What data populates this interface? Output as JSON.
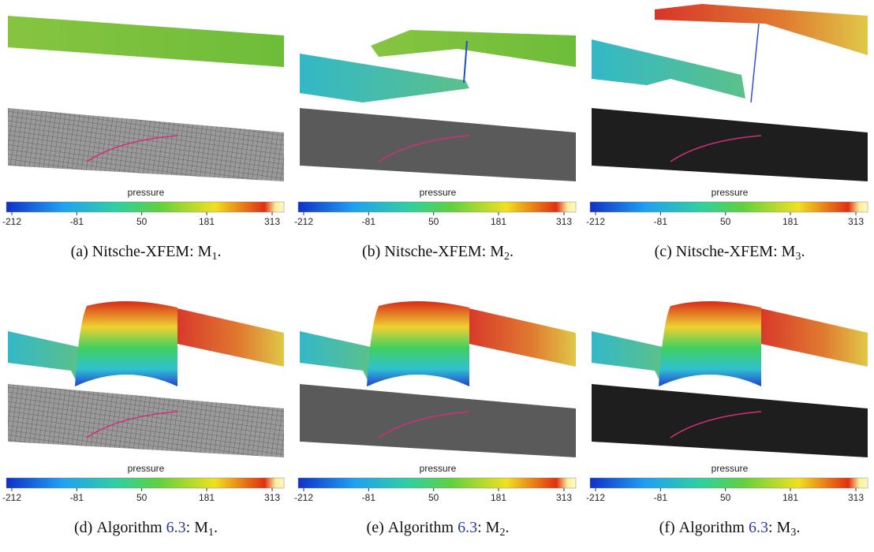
{
  "colorbar": {
    "title": "pressure",
    "ticks": [
      -212,
      -81,
      50,
      181,
      313
    ]
  },
  "panels": [
    {
      "caption": {
        "label": "(a)",
        "text": "Nitsche-XFEM: M",
        "sub": "1",
        "end": "."
      }
    },
    {
      "caption": {
        "label": "(b)",
        "text": "Nitsche-XFEM: M",
        "sub": "2",
        "end": "."
      }
    },
    {
      "caption": {
        "label": "(c)",
        "text": "Nitsche-XFEM: M",
        "sub": "3",
        "end": "."
      }
    },
    {
      "caption": {
        "label": "(d)",
        "text": "Algorithm",
        "ref": "6.3",
        "after": ": M",
        "sub": "1",
        "end": "."
      }
    },
    {
      "caption": {
        "label": "(e)",
        "text": "Algorithm",
        "ref": "6.3",
        "after": ": M",
        "sub": "2",
        "end": "."
      }
    },
    {
      "caption": {
        "label": "(f)",
        "text": "Algorithm",
        "ref": "6.3",
        "after": ": M",
        "sub": "3",
        "end": "."
      }
    }
  ]
}
